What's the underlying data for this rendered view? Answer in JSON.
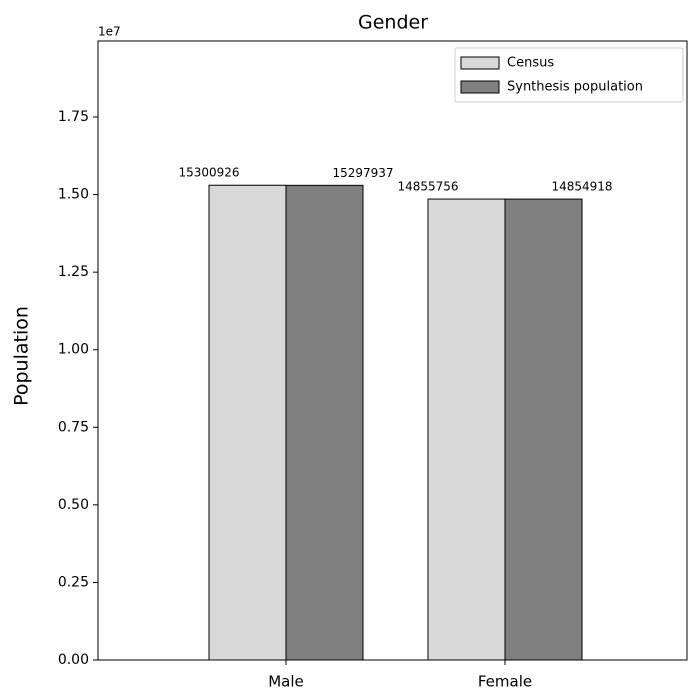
{
  "chart_data": {
    "type": "bar",
    "title": "Gender",
    "ylabel": "Population",
    "y_offset_label": "1e7",
    "categories": [
      "Male",
      "Female"
    ],
    "series": [
      {
        "name": "Census",
        "color": "#d9d9d9",
        "values": [
          15300926,
          14855756
        ]
      },
      {
        "name": "Synthesis population",
        "color": "#808080",
        "values": [
          15297937,
          14854918
        ]
      }
    ],
    "ylim": [
      0,
      19950000
    ],
    "yticks": [
      {
        "value": 0,
        "label": "0.00"
      },
      {
        "value": 2500000,
        "label": "0.25"
      },
      {
        "value": 5000000,
        "label": "0.50"
      },
      {
        "value": 7500000,
        "label": "0.75"
      },
      {
        "value": 10000000,
        "label": "1.00"
      },
      {
        "value": 12500000,
        "label": "1.25"
      },
      {
        "value": 15000000,
        "label": "1.50"
      },
      {
        "value": 17500000,
        "label": "1.75"
      }
    ],
    "legend": "upper right",
    "grid": false
  }
}
